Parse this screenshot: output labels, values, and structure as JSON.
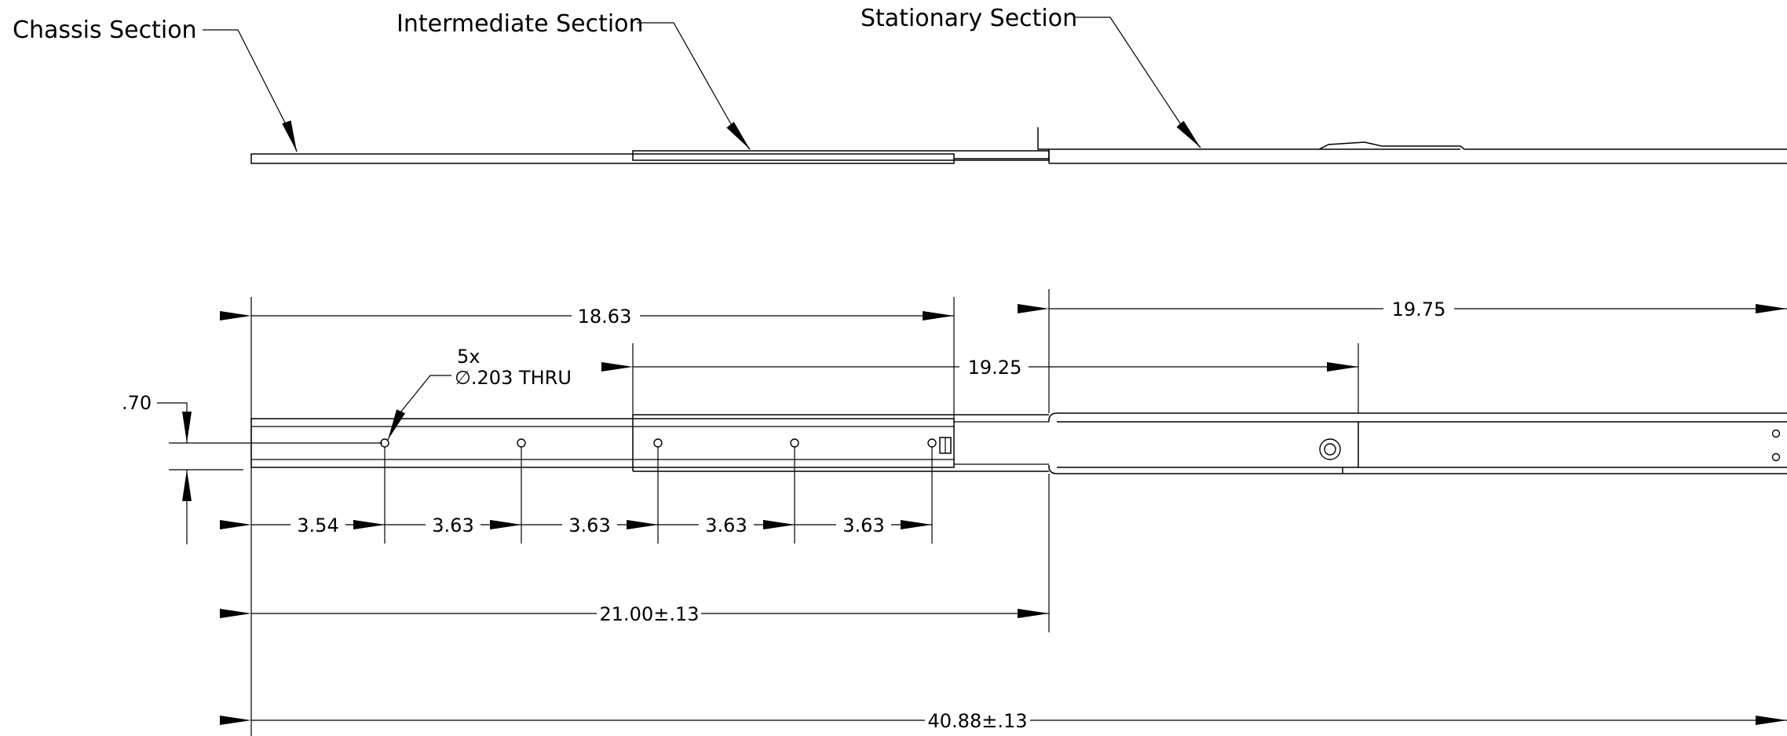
{
  "labels": {
    "chassis": "Chassis Section",
    "intermediate": "Intermediate Section",
    "stationary": "Stationary Section"
  },
  "dimensions": {
    "d_18_63": "18.63",
    "d_19_25": "19.25",
    "d_19_75": "19.75",
    "d_0_70": ".70",
    "d_3_54": "3.54",
    "d_3_63": "3.63",
    "d_21_00": "21.00±.13",
    "d_40_88": "40.88±.13"
  },
  "hole_callout": {
    "count": "5x",
    "spec": "∅.203 THRU"
  }
}
